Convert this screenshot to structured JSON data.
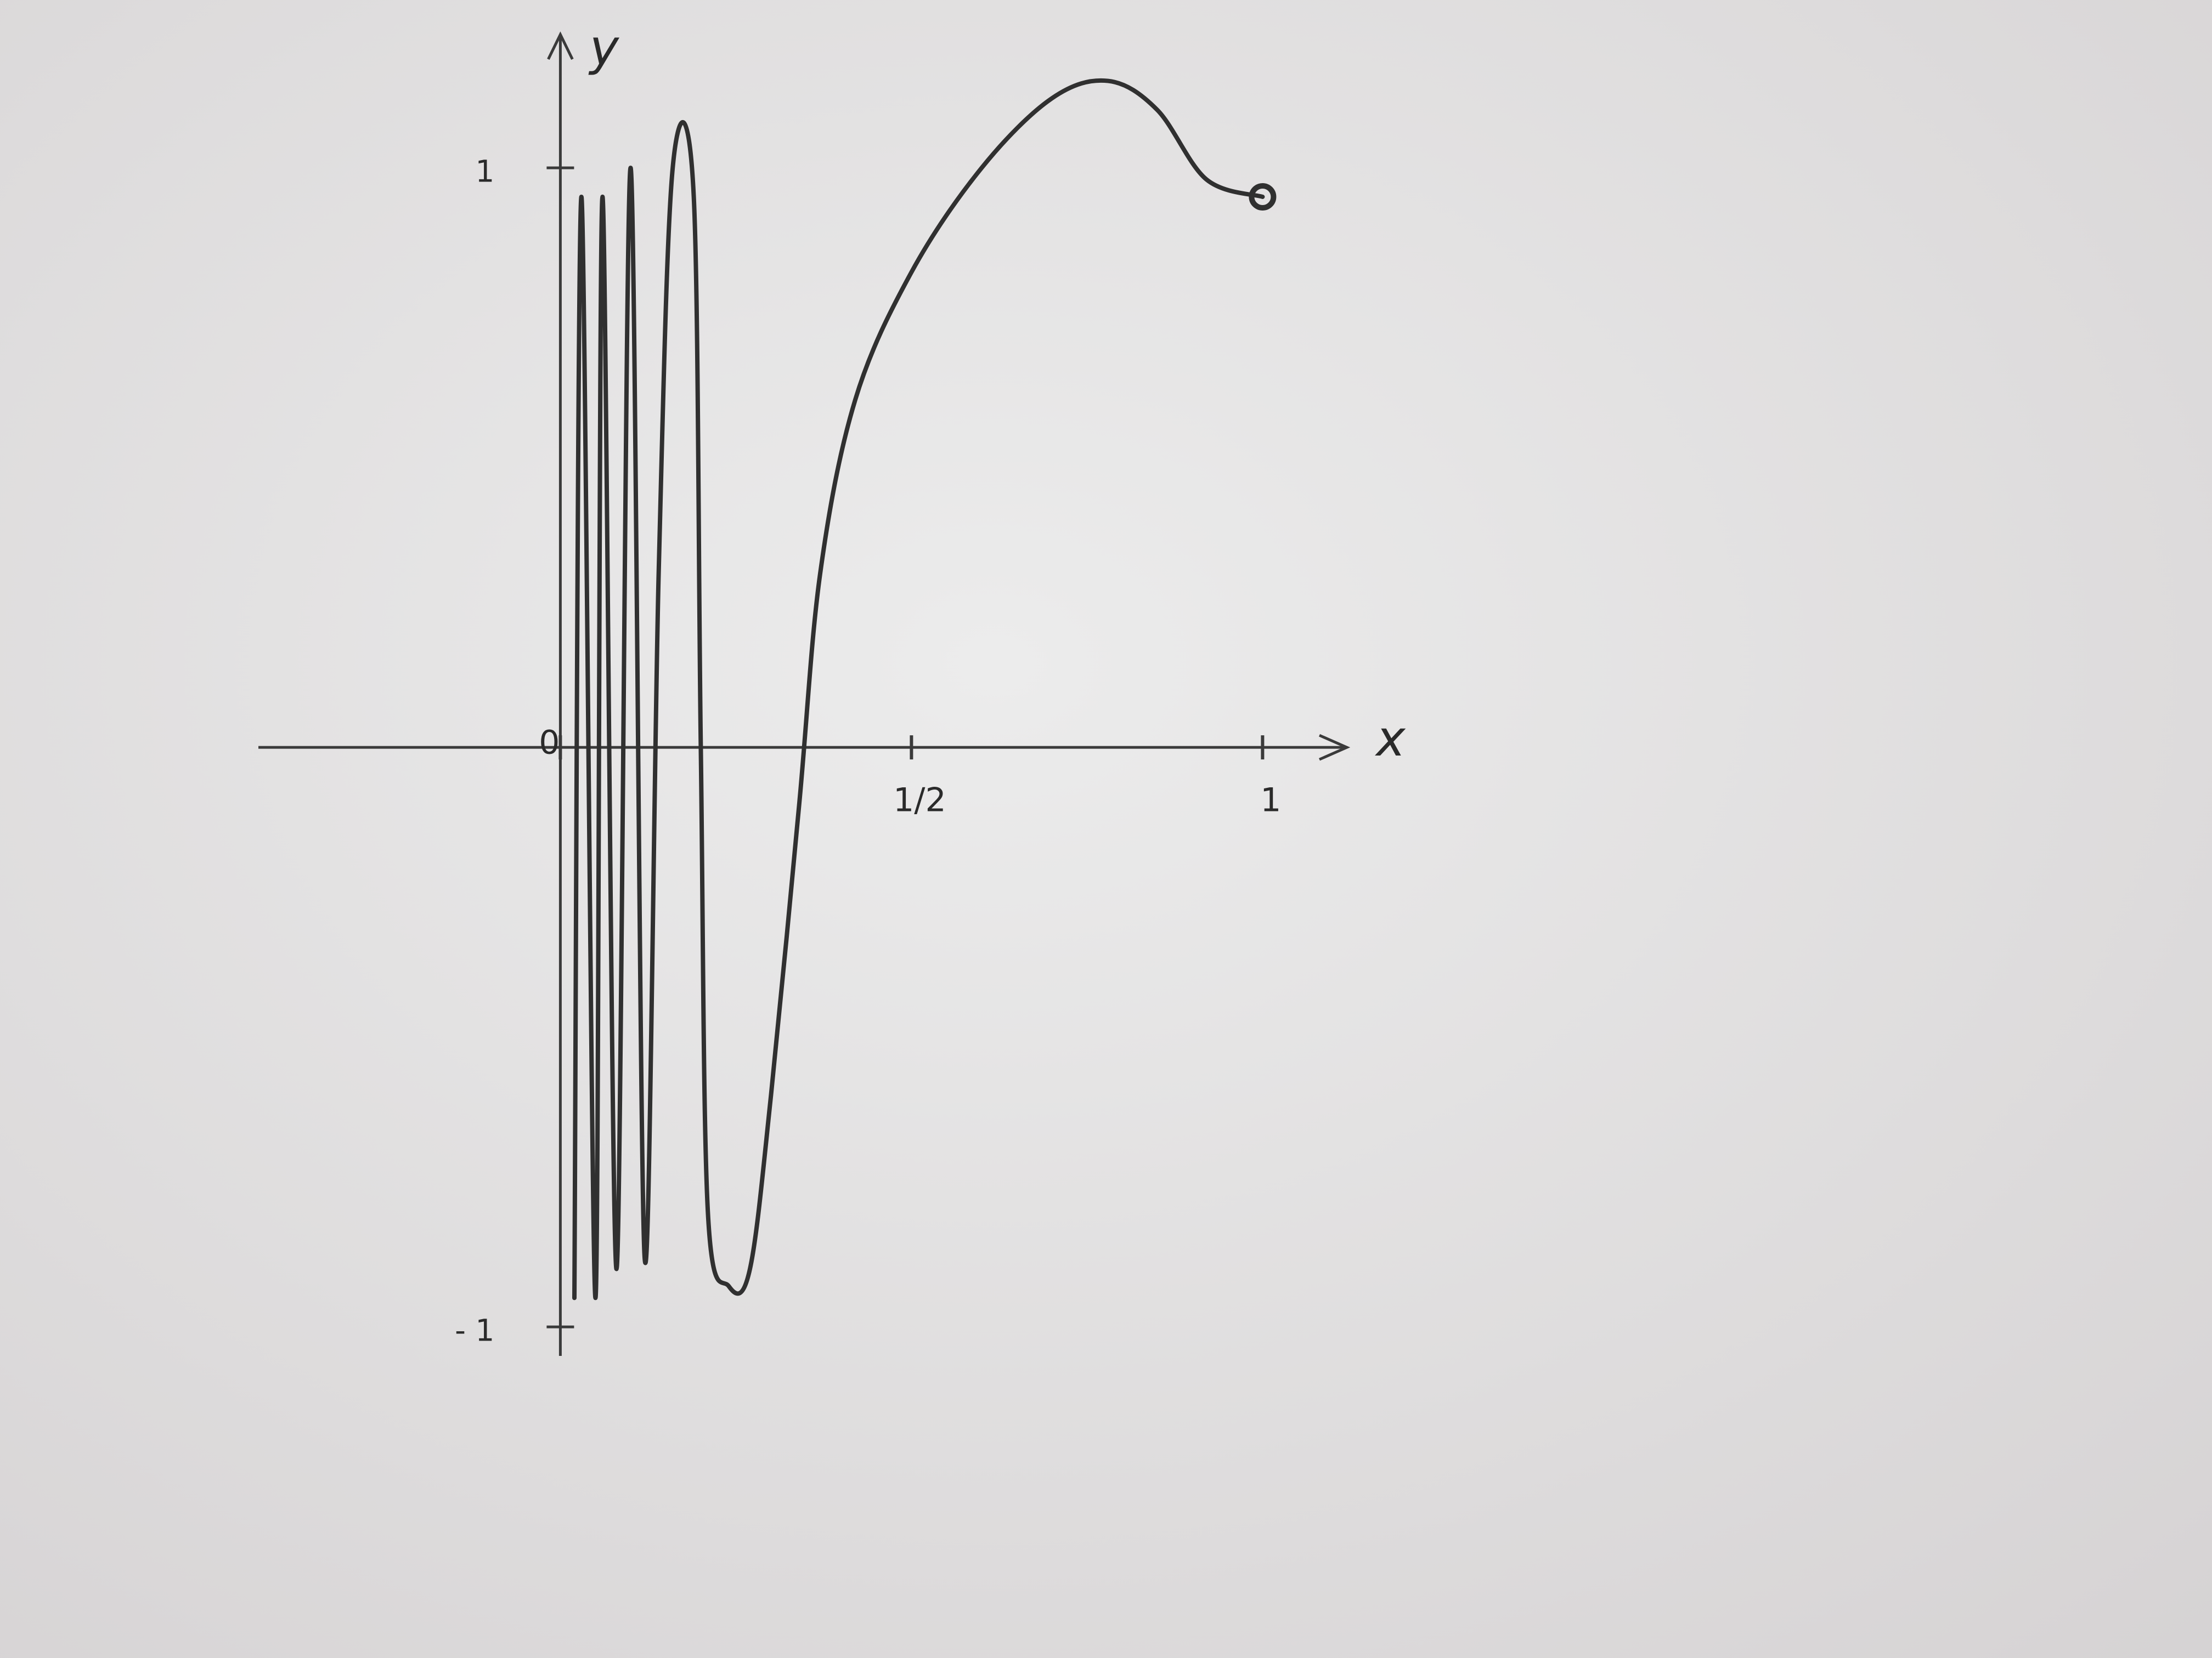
{
  "chart_data": {
    "type": "line",
    "x_label": "x",
    "y_label": "y",
    "xlim": [
      -0.43,
      1.12
    ],
    "ylim": [
      -1.05,
      1.23
    ],
    "xticks": [
      0,
      {
        "value": 0.5,
        "label": "1/2"
      },
      1
    ],
    "yticks": [
      1,
      {
        "value": -1,
        "label": "- 1"
      }
    ],
    "series": [
      {
        "color": "#303030",
        "x": [
          0.02,
          0.03,
          0.05,
          0.06,
          0.08,
          0.1,
          0.12,
          0.14,
          0.16,
          0.19,
          0.2,
          0.21,
          0.24,
          0.27,
          0.3,
          0.34,
          0.37,
          0.42,
          0.5,
          0.6,
          0.7,
          0.78,
          0.85,
          0.92,
          1.0
        ],
        "values": [
          -0.95,
          0.95,
          -0.95,
          0.95,
          -0.9,
          1.0,
          -0.88,
          0.3,
          1.0,
          0.95,
          0.0,
          -0.8,
          -0.93,
          -0.9,
          -0.6,
          -0.1,
          0.3,
          0.6,
          0.82,
          1.0,
          1.12,
          1.15,
          1.1,
          0.98,
          0.95
        ]
      }
    ]
  }
}
